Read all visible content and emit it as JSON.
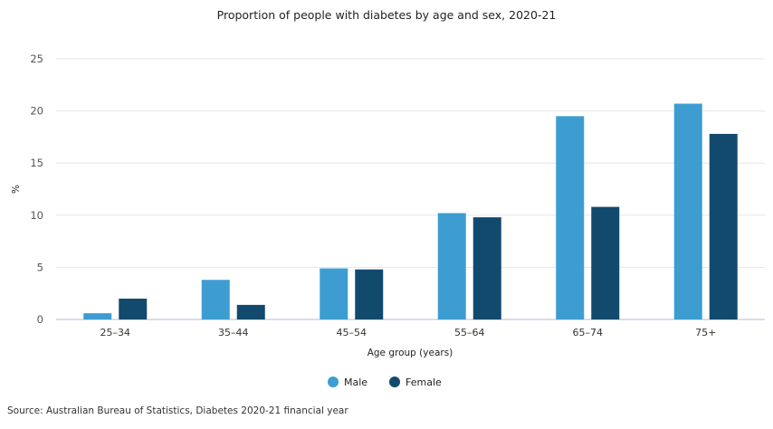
{
  "chart_data": {
    "type": "bar",
    "title": "Proportion of people with diabetes by age and sex, 2020-21",
    "xlabel": "Age group (years)",
    "ylabel": "%",
    "ylim": [
      0,
      25
    ],
    "yticks": [
      0,
      5,
      10,
      15,
      20,
      25
    ],
    "grid": true,
    "legend_position": "bottom",
    "categories": [
      "25–34",
      "35–44",
      "45–54",
      "55–64",
      "65–74",
      "75+"
    ],
    "series": [
      {
        "name": "Male",
        "color": "#3d9dd1",
        "values": [
          0.6,
          3.8,
          4.9,
          10.2,
          19.5,
          20.7
        ]
      },
      {
        "name": "Female",
        "color": "#124a6e",
        "values": [
          2.0,
          1.4,
          4.8,
          9.8,
          10.8,
          17.8
        ]
      }
    ]
  },
  "source": "Source: Australian Bureau of Statistics, Diabetes 2020-21 financial year"
}
